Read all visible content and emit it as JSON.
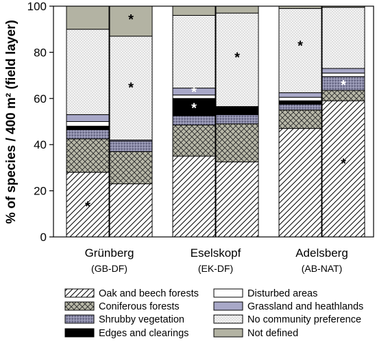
{
  "chart_data": {
    "type": "bar",
    "stacked": true,
    "ylabel": "% of species / 400 m² (field layer)",
    "ylim": [
      0,
      100
    ],
    "yticks": [
      "0",
      "20",
      "40",
      "60",
      "80",
      "100"
    ],
    "groups": [
      {
        "label": "Grünberg",
        "sublabel": "(GB-DF)"
      },
      {
        "label": "Eselskopf",
        "sublabel": "(EK-DF)"
      },
      {
        "label": "Adelsberg",
        "sublabel": "(AB-NAT)"
      }
    ],
    "series": [
      {
        "name": "Oak and beech forests",
        "pattern": "diag",
        "values": [
          28,
          23,
          35,
          32.5,
          47,
          59
        ]
      },
      {
        "name": "Coniferous forests",
        "pattern": "cross",
        "values": [
          14.5,
          14,
          13.5,
          16.5,
          8,
          4.5
        ]
      },
      {
        "name": "Shrubby vegetation",
        "pattern": "dots",
        "values": [
          4,
          4.5,
          4,
          4,
          2.5,
          6
        ]
      },
      {
        "name": "Edges and clearings",
        "pattern": "black",
        "values": [
          1.5,
          0,
          7.5,
          3.5,
          1.5,
          0
        ]
      },
      {
        "name": "Disturbed areas",
        "pattern": "white",
        "values": [
          2,
          0,
          1.5,
          0,
          1.5,
          1.5
        ]
      },
      {
        "name": "Grassland and heathlands",
        "pattern": "lav",
        "values": [
          3,
          0.5,
          3,
          0,
          2,
          2
        ]
      },
      {
        "name": "No community preference",
        "pattern": "speckle",
        "values": [
          37,
          45,
          31.5,
          40.5,
          36.5,
          26.5
        ]
      },
      {
        "name": "Not defined",
        "pattern": "gray",
        "values": [
          10,
          13,
          4,
          3,
          1,
          0.5
        ]
      }
    ],
    "annotations": [
      {
        "text": "*",
        "bar": 0,
        "y": 14,
        "color": "#000000"
      },
      {
        "text": "*",
        "bar": 1,
        "y": 95,
        "color": "#000000"
      },
      {
        "text": "*",
        "bar": 1,
        "y": 65.5,
        "color": "#000000"
      },
      {
        "text": "*",
        "bar": 2,
        "y": 63.5,
        "color": "#ffffff"
      },
      {
        "text": "*",
        "bar": 2,
        "y": 56.5,
        "color": "#ffffff"
      },
      {
        "text": "*",
        "bar": 3,
        "y": 78.5,
        "color": "#000000"
      },
      {
        "text": "*",
        "bar": 4,
        "y": 83.5,
        "color": "#000000"
      },
      {
        "text": "*",
        "bar": 5,
        "y": 66.5,
        "color": "#ffffff"
      },
      {
        "text": "*",
        "bar": 5,
        "y": 32.5,
        "color": "#000000"
      }
    ],
    "legend_position": "bottom"
  }
}
